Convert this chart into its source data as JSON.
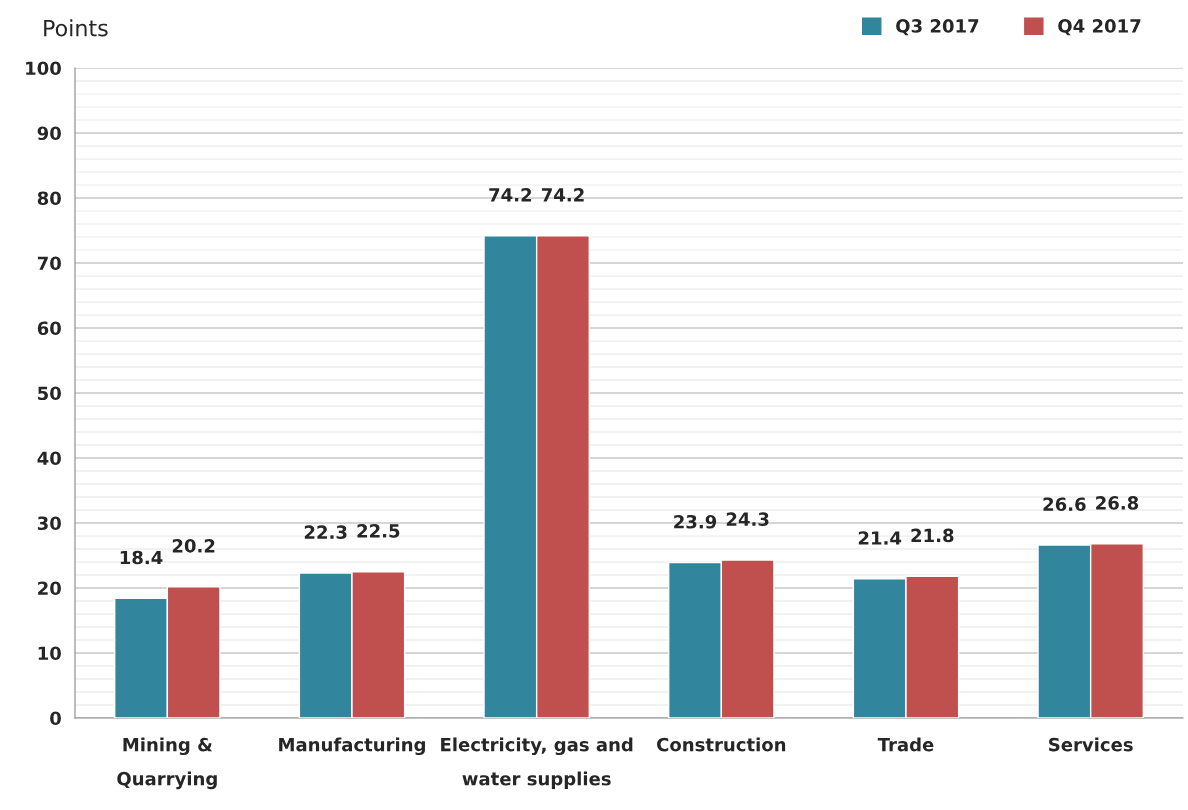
{
  "chart_data": {
    "type": "bar",
    "ylabel": "Points",
    "categories": [
      "Mining &\nQuarrying",
      "Manufacturing",
      "Electricity, gas and\nwater supplies",
      "Construction",
      "Trade",
      "Services"
    ],
    "series": [
      {
        "name": "Q3 2017",
        "color": "#31859c",
        "values": [
          18.4,
          22.3,
          74.2,
          23.9,
          21.4,
          26.6
        ]
      },
      {
        "name": "Q4 2017",
        "color": "#c0504d",
        "values": [
          20.2,
          22.5,
          74.2,
          24.3,
          21.8,
          26.8
        ]
      }
    ],
    "ylim": [
      0,
      100
    ],
    "yticks": [
      0,
      {
        "value": 2,
        "label": null
      },
      {
        "value": 4,
        "label": null
      },
      {
        "value": 6,
        "label": null
      },
      {
        "value": 8,
        "label": null
      },
      10,
      {
        "value": 12,
        "label": null
      },
      {
        "value": 14,
        "label": null
      },
      {
        "value": 16,
        "label": null
      },
      {
        "value": 18,
        "label": null
      },
      20,
      {
        "value": 22,
        "label": null
      },
      {
        "value": 24,
        "label": null
      },
      {
        "value": 26,
        "label": null
      },
      {
        "value": 28,
        "label": null
      },
      30,
      {
        "value": 32,
        "label": null
      },
      {
        "value": 34,
        "label": null
      },
      {
        "value": 36,
        "label": null
      },
      {
        "value": 38,
        "label": null
      },
      40,
      {
        "value": 42,
        "label": null
      },
      {
        "value": 44,
        "label": null
      },
      {
        "value": 46,
        "label": null
      },
      {
        "value": 48,
        "label": null
      },
      50,
      {
        "value": 52,
        "label": null
      },
      {
        "value": 54,
        "label": null
      },
      {
        "value": 56,
        "label": null
      },
      {
        "value": 58,
        "label": null
      },
      60,
      {
        "value": 62,
        "label": null
      },
      {
        "value": 64,
        "label": null
      },
      {
        "value": 66,
        "label": null
      },
      {
        "value": 68,
        "label": null
      },
      70,
      {
        "value": 72,
        "label": null
      },
      {
        "value": 74,
        "label": null
      },
      {
        "value": 76,
        "label": null
      },
      {
        "value": 78,
        "label": null
      },
      80,
      {
        "value": 82,
        "label": null
      },
      {
        "value": 84,
        "label": null
      },
      {
        "value": 86,
        "label": null
      },
      {
        "value": 88,
        "label": null
      },
      90,
      {
        "value": 92,
        "label": null
      },
      {
        "value": 94,
        "label": null
      },
      {
        "value": 96,
        "label": null
      },
      {
        "value": 98,
        "label": null
      },
      100
    ],
    "grid": "y",
    "legend": "top right",
    "data_labels": true
  }
}
